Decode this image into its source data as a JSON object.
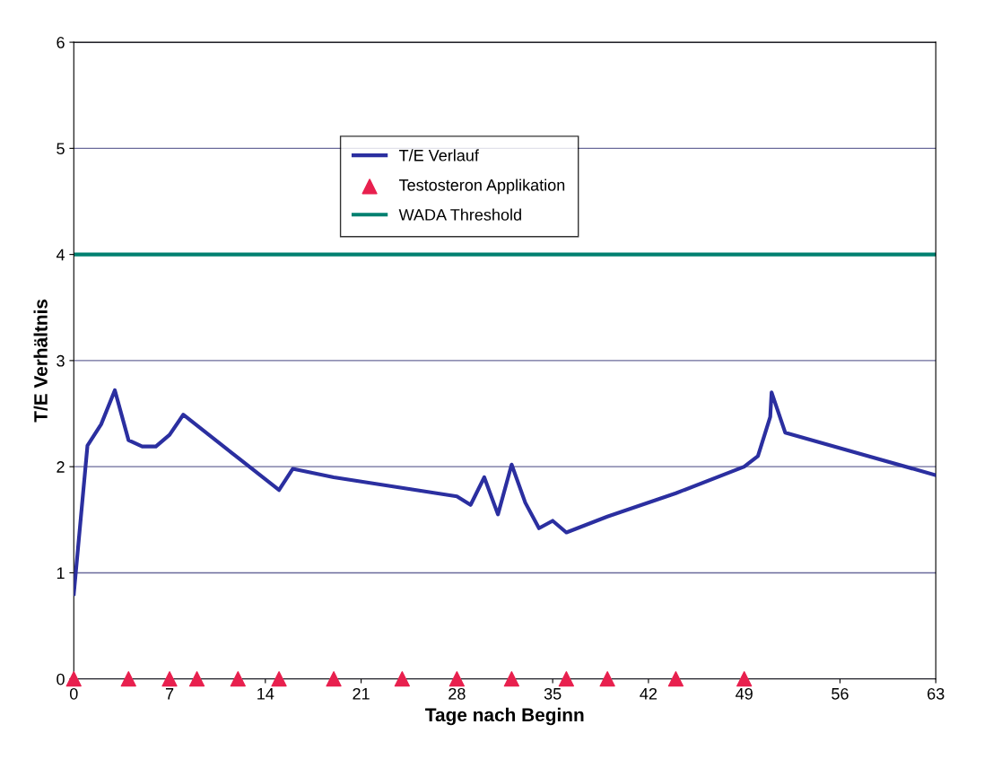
{
  "chart_data": {
    "type": "line",
    "xlabel": "Tage nach Beginn",
    "ylabel": "T/E Verhältnis",
    "xlim": [
      0,
      63
    ],
    "xticks": [
      0,
      7,
      14,
      21,
      28,
      35,
      42,
      49,
      56,
      63
    ],
    "ylim": [
      0,
      6
    ],
    "yticks": [
      0,
      1,
      2,
      3,
      4,
      5,
      6
    ],
    "grid": "y",
    "legend": "top left",
    "series": [
      {
        "name": "T/E Verlauf",
        "color": "#2b2fa0",
        "marker": "none",
        "x": [
          0,
          1,
          2,
          3,
          4,
          5,
          6,
          7,
          8,
          15,
          16,
          19,
          28,
          29,
          30,
          31,
          32,
          33,
          34,
          35,
          36,
          39,
          44,
          49,
          50,
          50.9,
          51,
          52,
          63
        ],
        "values": [
          0.8,
          2.2,
          2.4,
          2.72,
          2.25,
          2.19,
          2.19,
          2.3,
          2.49,
          1.78,
          1.98,
          1.9,
          1.72,
          1.64,
          1.9,
          1.55,
          2.02,
          1.66,
          1.42,
          1.49,
          1.38,
          1.53,
          1.75,
          2.0,
          2.1,
          2.47,
          2.7,
          2.32,
          1.92
        ]
      },
      {
        "name": "Testosteron Applikation",
        "type": "scatter",
        "color": "#e8204e",
        "marker": "triangle",
        "x": [
          0,
          4,
          7,
          9,
          12,
          15,
          19,
          24,
          28,
          32,
          36,
          39,
          44,
          49
        ],
        "values": [
          0,
          0,
          0,
          0,
          0,
          0,
          0,
          0,
          0,
          0,
          0,
          0,
          0,
          0
        ]
      }
    ],
    "ref_lines": [
      {
        "axis": "y",
        "value": 4,
        "label": "WADA Threshold",
        "color": "#008070"
      }
    ]
  }
}
